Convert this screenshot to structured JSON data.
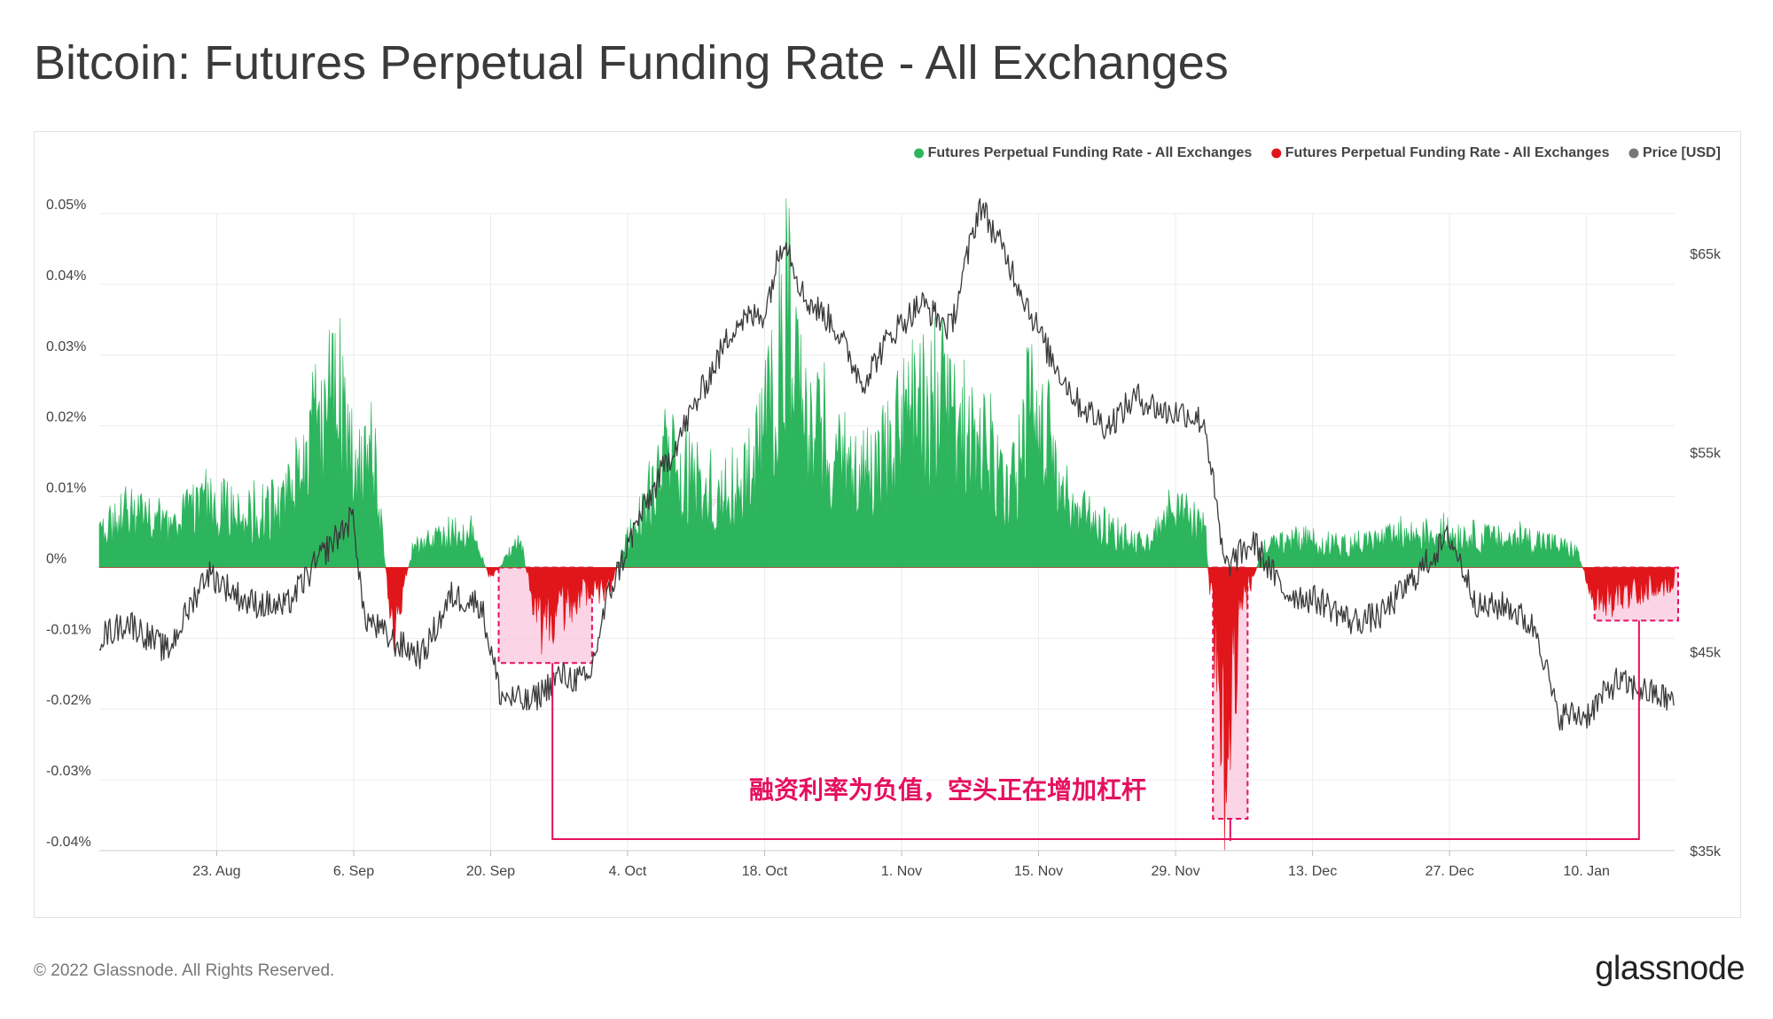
{
  "page": {
    "title": "Bitcoin: Futures Perpetual Funding Rate - All Exchanges",
    "copyright": "© 2022 Glassnode. All Rights Reserved.",
    "logo": "glassnode",
    "watermark": "glassnode"
  },
  "colors": {
    "positive": "#2db55d",
    "negative": "#e0161b",
    "price": "#3a3a3a",
    "grid": "#ececec",
    "highlight_fill": "#f9c6dc",
    "highlight_stroke": "#e5105e",
    "annotation": "#e5105e"
  },
  "chart_data": {
    "type": "area",
    "title": "Bitcoin: Futures Perpetual Funding Rate - All Exchanges",
    "legend_position": "top-right",
    "legend": [
      {
        "label": "Futures Perpetual Funding Rate - All Exchanges",
        "color": "#2db55d"
      },
      {
        "label": "Futures Perpetual Funding Rate - All Exchanges",
        "color": "#e0161b"
      },
      {
        "label": "Price [USD]",
        "color": "#777777"
      }
    ],
    "x_ticks": [
      "23. Aug",
      "6. Sep",
      "20. Sep",
      "4. Oct",
      "18. Oct",
      "1. Nov",
      "15. Nov",
      "29. Nov",
      "13. Dec",
      "27. Dec",
      "10. Jan"
    ],
    "x_range": [
      "2021-08-11",
      "2022-01-19"
    ],
    "y_left": {
      "ticks": [
        "0.05%",
        "0.04%",
        "0.03%",
        "0.02%",
        "0.01%",
        "0%",
        "-0.01%",
        "-0.02%",
        "-0.03%",
        "-0.04%"
      ],
      "range": [
        -0.04,
        0.05
      ],
      "unit": "%"
    },
    "y_right": {
      "ticks": [
        "$65k",
        "$55k",
        "$45k",
        "$35k"
      ],
      "range": [
        35000,
        67000
      ],
      "unit": "USD"
    },
    "grid": true,
    "series": [
      {
        "name": "Futures Perpetual Funding Rate - All Exchanges",
        "axis": "left",
        "unit": "%",
        "points": [
          [
            "2021-08-11",
            0.006
          ],
          [
            "2021-08-14",
            0.01
          ],
          [
            "2021-08-18",
            0.007
          ],
          [
            "2021-08-22",
            0.012
          ],
          [
            "2021-08-26",
            0.009
          ],
          [
            "2021-08-30",
            0.011
          ],
          [
            "2021-09-02",
            0.022
          ],
          [
            "2021-09-04",
            0.031
          ],
          [
            "2021-09-06",
            0.018
          ],
          [
            "2021-09-08",
            0.02
          ],
          [
            "2021-09-10",
            -0.012
          ],
          [
            "2021-09-12",
            0.003
          ],
          [
            "2021-09-15",
            0.006
          ],
          [
            "2021-09-18",
            0.006
          ],
          [
            "2021-09-20",
            -0.002
          ],
          [
            "2021-09-23",
            0.005
          ],
          [
            "2021-09-25",
            -0.012
          ],
          [
            "2021-09-27",
            -0.008
          ],
          [
            "2021-09-30",
            -0.005
          ],
          [
            "2021-10-02",
            -0.004
          ],
          [
            "2021-10-04",
            0.005
          ],
          [
            "2021-10-06",
            0.012
          ],
          [
            "2021-10-08",
            0.02
          ],
          [
            "2021-10-11",
            0.015
          ],
          [
            "2021-10-14",
            0.013
          ],
          [
            "2021-10-17",
            0.018
          ],
          [
            "2021-10-19",
            0.03
          ],
          [
            "2021-10-20",
            0.052
          ],
          [
            "2021-10-22",
            0.026
          ],
          [
            "2021-10-25",
            0.02
          ],
          [
            "2021-10-28",
            0.016
          ],
          [
            "2021-10-31",
            0.022
          ],
          [
            "2021-11-03",
            0.029
          ],
          [
            "2021-11-06",
            0.025
          ],
          [
            "2021-11-09",
            0.022
          ],
          [
            "2021-11-12",
            0.012
          ],
          [
            "2021-11-15",
            0.033
          ],
          [
            "2021-11-17",
            0.012
          ],
          [
            "2021-11-20",
            0.009
          ],
          [
            "2021-11-23",
            0.006
          ],
          [
            "2021-11-26",
            0.004
          ],
          [
            "2021-11-29",
            0.01
          ],
          [
            "2021-12-02",
            0.007
          ],
          [
            "2021-12-04",
            -0.035
          ],
          [
            "2021-12-06",
            -0.007
          ],
          [
            "2021-12-08",
            0.004
          ],
          [
            "2021-12-12",
            0.005
          ],
          [
            "2021-12-16",
            0.004
          ],
          [
            "2021-12-20",
            0.005
          ],
          [
            "2021-12-24",
            0.006
          ],
          [
            "2021-12-28",
            0.006
          ],
          [
            "2022-01-01",
            0.005
          ],
          [
            "2022-01-05",
            0.005
          ],
          [
            "2022-01-09",
            0.003
          ],
          [
            "2022-01-11",
            -0.007
          ],
          [
            "2022-01-14",
            -0.005
          ],
          [
            "2022-01-19",
            -0.003
          ]
        ]
      },
      {
        "name": "Price [USD]",
        "axis": "right",
        "unit": "USD",
        "points": [
          [
            "2021-08-11",
            45700
          ],
          [
            "2021-08-14",
            46500
          ],
          [
            "2021-08-18",
            45000
          ],
          [
            "2021-08-22",
            49000
          ],
          [
            "2021-08-26",
            47500
          ],
          [
            "2021-08-30",
            47200
          ],
          [
            "2021-09-03",
            50000
          ],
          [
            "2021-09-06",
            51800
          ],
          [
            "2021-09-07",
            46800
          ],
          [
            "2021-09-10",
            45500
          ],
          [
            "2021-09-13",
            44800
          ],
          [
            "2021-09-16",
            47800
          ],
          [
            "2021-09-19",
            47400
          ],
          [
            "2021-09-21",
            42800
          ],
          [
            "2021-09-24",
            42400
          ],
          [
            "2021-09-27",
            43800
          ],
          [
            "2021-09-30",
            43500
          ],
          [
            "2021-10-02",
            47800
          ],
          [
            "2021-10-05",
            51500
          ],
          [
            "2021-10-08",
            54500
          ],
          [
            "2021-10-11",
            57500
          ],
          [
            "2021-10-15",
            61500
          ],
          [
            "2021-10-18",
            62000
          ],
          [
            "2021-10-20",
            66000
          ],
          [
            "2021-10-22",
            62800
          ],
          [
            "2021-10-25",
            61500
          ],
          [
            "2021-10-28",
            58500
          ],
          [
            "2021-10-31",
            61000
          ],
          [
            "2021-11-03",
            62500
          ],
          [
            "2021-11-06",
            61200
          ],
          [
            "2021-11-09",
            67500
          ],
          [
            "2021-11-12",
            64500
          ],
          [
            "2021-11-16",
            60000
          ],
          [
            "2021-11-19",
            57500
          ],
          [
            "2021-11-22",
            56300
          ],
          [
            "2021-11-25",
            57800
          ],
          [
            "2021-11-28",
            57000
          ],
          [
            "2021-11-30",
            57000
          ],
          [
            "2021-12-02",
            56500
          ],
          [
            "2021-12-04",
            49200
          ],
          [
            "2021-12-07",
            50500
          ],
          [
            "2021-12-10",
            48000
          ],
          [
            "2021-12-14",
            47500
          ],
          [
            "2021-12-17",
            46500
          ],
          [
            "2021-12-20",
            46800
          ],
          [
            "2021-12-23",
            48500
          ],
          [
            "2021-12-27",
            50800
          ],
          [
            "2021-12-30",
            47200
          ],
          [
            "2022-01-02",
            47300
          ],
          [
            "2022-01-05",
            46000
          ],
          [
            "2022-01-07",
            41800
          ],
          [
            "2022-01-10",
            41800
          ],
          [
            "2022-01-13",
            43500
          ],
          [
            "2022-01-16",
            43000
          ],
          [
            "2022-01-19",
            42500
          ]
        ]
      }
    ],
    "annotations": [
      {
        "text": "融资利率为负值，空头正在增加杠杆",
        "color": "#e5105e"
      }
    ],
    "highlight_regions": [
      {
        "from": "2021-09-21",
        "to": "2021-09-30",
        "y_from": -0.0135,
        "y_to": 0
      },
      {
        "from": "2021-12-03",
        "to": "2021-12-06",
        "y_from": -0.0355,
        "y_to": 0
      },
      {
        "from": "2022-01-11",
        "to": "2022-01-19",
        "y_from": -0.0075,
        "y_to": 0
      }
    ]
  }
}
